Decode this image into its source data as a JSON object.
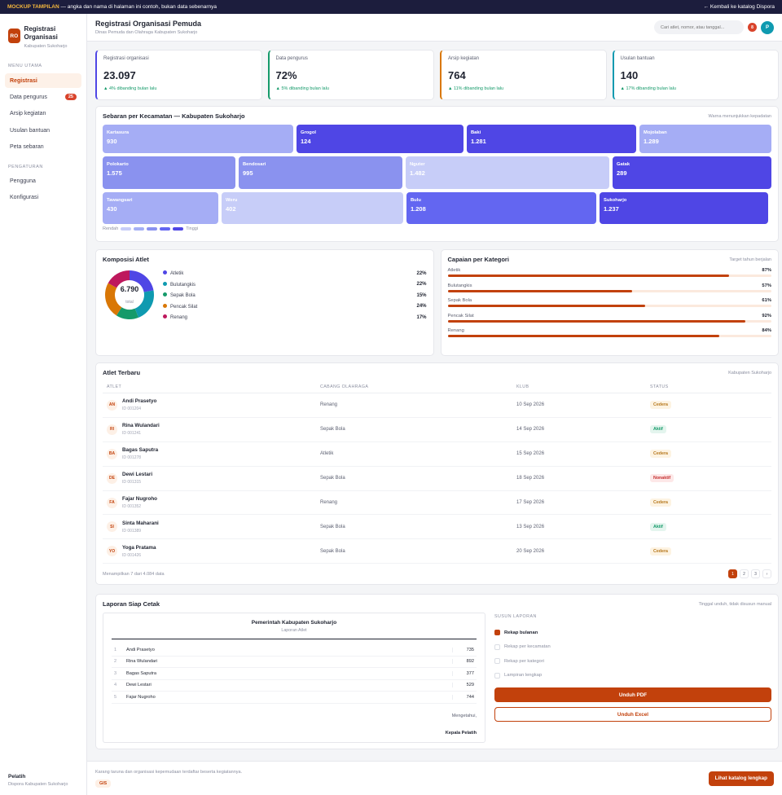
{
  "topbar": {
    "tag": "MOCKUP TAMPILAN",
    "note": " — angka dan nama di halaman ini contoh, bukan data sebenarnya",
    "back": "← Kembali ke katalog Dispora"
  },
  "brand": {
    "logo": "RO",
    "name": "Registrasi Organisasi",
    "sub": "Kabupaten Sukoharjo"
  },
  "sidebar": {
    "section_main": "MENU UTAMA",
    "main_items": [
      {
        "label": "Registrasi",
        "active": true
      },
      {
        "label": "Data pengurus",
        "badge": "25"
      },
      {
        "label": "Arsip kegiatan"
      },
      {
        "label": "Usulan bantuan"
      },
      {
        "label": "Peta sebaran"
      }
    ],
    "section_settings": "PENGATURAN",
    "settings_items": [
      {
        "label": "Pengguna"
      },
      {
        "label": "Konfigurasi"
      }
    ],
    "footer_user": "Pelatih",
    "footer_org": "Dispora Kabupaten Sukoharjo"
  },
  "header": {
    "title": "Registrasi Organisasi Pemuda",
    "subtitle": "Dinas Pemuda dan Olahraga Kabupaten Sukoharjo",
    "search_placeholder": "Cari atlet, nomor, atau tanggal...",
    "notif_count": "8",
    "user_initial": "P"
  },
  "kpis": [
    {
      "label": "Registrasi organisasi",
      "value": "23.097",
      "trend": "▲ 4% dibanding bulan lalu",
      "color": "#4f46e5"
    },
    {
      "label": "Data pengurus",
      "value": "72%",
      "trend": "▲ 5% dibanding bulan lalu",
      "color": "#159a6a"
    },
    {
      "label": "Arsip kegiatan",
      "value": "764",
      "trend": "▲ 11% dibanding bulan lalu",
      "color": "#d97706"
    },
    {
      "label": "Usulan bantuan",
      "value": "140",
      "trend": "▲ 17% dibanding bulan lalu",
      "color": "#0f9ab0"
    }
  ],
  "treemap": {
    "title": "Sebaran per Kecamatan — Kabupaten Sukoharjo",
    "note": "Warna menunjukkan kepadatan",
    "legend_low": "Rendah",
    "legend_high": "Tinggi",
    "legend_colors": [
      "#c7cdf8",
      "#a5b0f5",
      "#8a92ef",
      "#6366f1",
      "#4f46e5"
    ]
  },
  "chart_data": [
    {
      "type": "treemap",
      "title": "Sebaran per Kecamatan — Kabupaten Sukoharjo",
      "items": [
        {
          "name": "Kartasura",
          "display": "930",
          "value": 930
        },
        {
          "name": "Grogol",
          "display": "124",
          "value": 124
        },
        {
          "name": "Baki",
          "display": "1.281",
          "value": 1281
        },
        {
          "name": "Mojolaban",
          "display": "1.289",
          "value": 1289
        },
        {
          "name": "Polokarto",
          "display": "1.575",
          "value": 1575
        },
        {
          "name": "Bendosari",
          "display": "995",
          "value": 995
        },
        {
          "name": "Nguter",
          "display": "1.482",
          "value": 1482
        },
        {
          "name": "Gatak",
          "display": "289",
          "value": 289
        },
        {
          "name": "Tawangsari",
          "display": "430",
          "value": 430
        },
        {
          "name": "Weru",
          "display": "402",
          "value": 402
        },
        {
          "name": "Bulu",
          "display": "1.208",
          "value": 1208
        },
        {
          "name": "Sukoharjo",
          "display": "1.237",
          "value": 1237
        }
      ]
    },
    {
      "type": "pie",
      "title": "Komposisi Atlet",
      "total": "6.790",
      "total_label": "total",
      "slices": [
        {
          "name": "Atletik",
          "value": 22,
          "label": "22%",
          "color": "#4f46e5"
        },
        {
          "name": "Bulutangkis",
          "value": 22,
          "label": "22%",
          "color": "#0f9ab0"
        },
        {
          "name": "Sepak Bola",
          "value": 15,
          "label": "15%",
          "color": "#159a6a"
        },
        {
          "name": "Pencak Silat",
          "value": 24,
          "label": "24%",
          "color": "#d97706"
        },
        {
          "name": "Renang",
          "value": 17,
          "label": "17%",
          "color": "#be185d"
        }
      ]
    },
    {
      "type": "bar",
      "title": "Capaian per Kategori",
      "note": "Target tahun berjalan",
      "categories": [
        "Atletik",
        "Bulutangkis",
        "Sepak Bola",
        "Pencak Silat",
        "Renang"
      ],
      "values": [
        87,
        57,
        61,
        92,
        84
      ],
      "labels": [
        "87%",
        "57%",
        "61%",
        "92%",
        "84%"
      ],
      "ylim": [
        0,
        100
      ]
    }
  ],
  "table": {
    "title": "Atlet Terbaru",
    "note": "Kabupaten Sukoharjo",
    "columns": [
      "ATLET",
      "CABANG OLAHRAGA",
      "KLUB",
      "STATUS"
    ],
    "rows": [
      {
        "initials": "AN",
        "name": "Andi Prasetyo",
        "id": "ID 001204",
        "sport": "Renang",
        "date": "10 Sep 2026",
        "status": "Cedera"
      },
      {
        "initials": "RI",
        "name": "Rina Wulandari",
        "id": "ID 001241",
        "sport": "Sepak Bola",
        "date": "14 Sep 2026",
        "status": "Aktif"
      },
      {
        "initials": "BA",
        "name": "Bagas Saputra",
        "id": "ID 001278",
        "sport": "Atletik",
        "date": "15 Sep 2026",
        "status": "Cedera"
      },
      {
        "initials": "DE",
        "name": "Dewi Lestari",
        "id": "ID 001315",
        "sport": "Sepak Bola",
        "date": "18 Sep 2026",
        "status": "Nonaktif"
      },
      {
        "initials": "FA",
        "name": "Fajar Nugroho",
        "id": "ID 001352",
        "sport": "Renang",
        "date": "17 Sep 2026",
        "status": "Cedera"
      },
      {
        "initials": "SI",
        "name": "Sinta Maharani",
        "id": "ID 001389",
        "sport": "Sepak Bola",
        "date": "13 Sep 2026",
        "status": "Aktif"
      },
      {
        "initials": "YO",
        "name": "Yoga Pratama",
        "id": "ID 001426",
        "sport": "Sepak Bola",
        "date": "20 Sep 2026",
        "status": "Cedera"
      }
    ],
    "footer": "Menampilkan 7 dari 4.084 data",
    "pages": [
      "1",
      "2",
      "3",
      "›"
    ]
  },
  "report": {
    "title": "Laporan Siap Cetak",
    "note": "Tinggal unduh, tidak disusun manual",
    "sheet_org": "Pemerintah Kabupaten Sukoharjo",
    "sheet_title": "Laporan Atlet",
    "rows": [
      {
        "n": "1",
        "name": "Andi Prasetyo",
        "score": "735"
      },
      {
        "n": "2",
        "name": "Rina Wulandari",
        "score": "892"
      },
      {
        "n": "3",
        "name": "Bagas Saputra",
        "score": "377"
      },
      {
        "n": "4",
        "name": "Dewi Lestari",
        "score": "529"
      },
      {
        "n": "5",
        "name": "Fajar Nugroho",
        "score": "744"
      }
    ],
    "ack": "Mengetahui,",
    "signer": "Kepala Pelatih",
    "options_title": "SUSUN LAPORAN",
    "options": [
      {
        "label": "Rekap bulanan",
        "on": true
      },
      {
        "label": "Rekap per kecamatan"
      },
      {
        "label": "Rekap per kategori"
      },
      {
        "label": "Lampiran lengkap"
      }
    ],
    "btn_pdf": "Unduh PDF",
    "btn_excel": "Unduh Excel"
  },
  "footer": {
    "desc": "Karang taruna dan organisasi kepemudaan terdaftar beserta kegiatannya.",
    "tag": "GIS",
    "button": "Lihat katalog lengkap"
  }
}
